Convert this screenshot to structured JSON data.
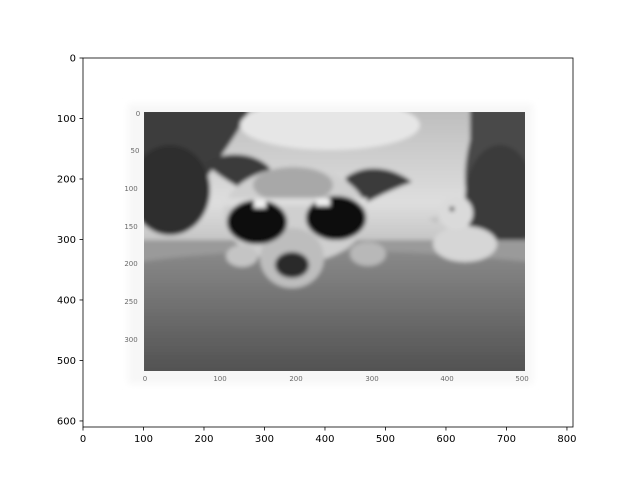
{
  "plot": {
    "x_ticks": [
      "0",
      "100",
      "200",
      "300",
      "400",
      "500",
      "600",
      "700",
      "800"
    ],
    "y_ticks": [
      "0",
      "100",
      "200",
      "300",
      "400",
      "500",
      "600"
    ],
    "x_range": [
      0,
      810
    ],
    "y_range": [
      610,
      0
    ]
  },
  "image": {
    "description": "",
    "inner_y_ticks": [
      "0",
      "50",
      "100",
      "150",
      "200",
      "250",
      "300"
    ],
    "inner_x_ticks": [
      "0",
      "100",
      "200",
      "300",
      "400",
      "500"
    ],
    "colors": {
      "sky_light": "#e2e2e2",
      "sky_mid": "#b4b4b4",
      "trees_dark": "#3a3a3a",
      "pool_edge": "#5c5c5c",
      "dog_fur_light": "#cfcfcf",
      "dog_fur_dark": "#3c3c3c",
      "sunglasses": "#111111",
      "duck": "#d8d8d8"
    }
  }
}
